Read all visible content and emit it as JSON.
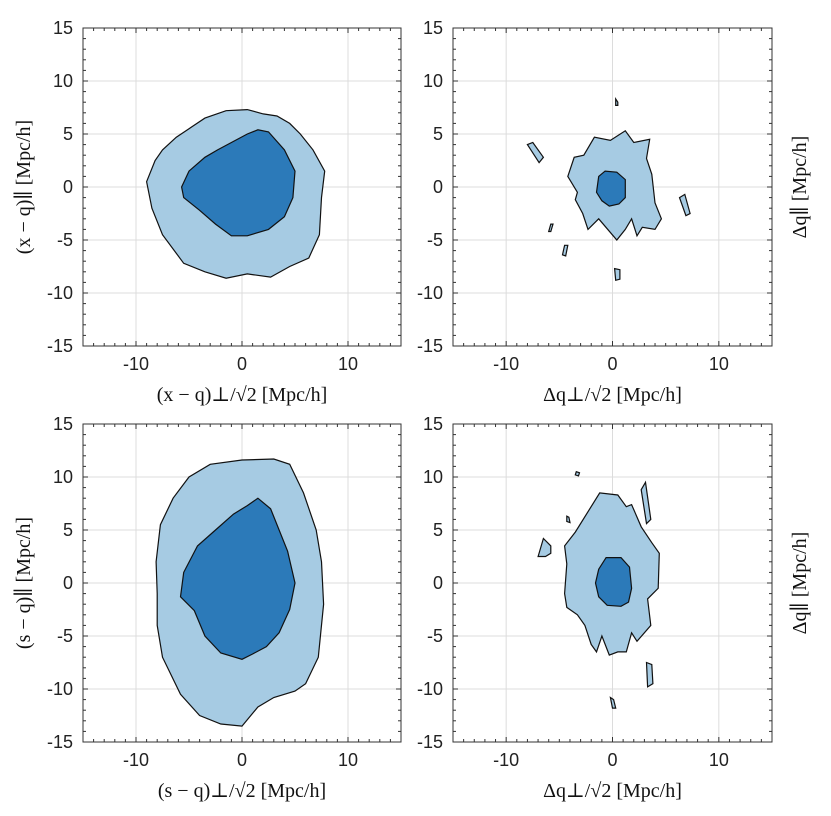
{
  "colors": {
    "outer_fill": "#a6cbe3",
    "inner_fill": "#2c7ab9",
    "outline": "#111111",
    "grid": "#dcdcdc"
  },
  "chart_data": [
    {
      "id": "top-left",
      "type": "contour",
      "xlabel": "(x − q)⊥/√2 [Mpc/h]",
      "ylabel": "(x − q)∥ [Mpc/h]",
      "ylabel_side": "left",
      "xlim": [
        -15,
        15
      ],
      "ylim": [
        -15,
        15
      ],
      "xticks": [
        -10,
        0,
        10
      ],
      "xtick_labels": [
        "-10",
        "0",
        "10"
      ],
      "yticks": [
        -15,
        -10,
        -5,
        0,
        5,
        10,
        15
      ],
      "ytick_labels": [
        "-15",
        "-10",
        "-5",
        "0",
        "5",
        "10",
        "15"
      ],
      "grid": true,
      "contours": [
        {
          "level": "outer",
          "polygons": [
            [
              [
                -9,
                0.5
              ],
              [
                -8.2,
                2.5
              ],
              [
                -7.5,
                3.5
              ],
              [
                -6.2,
                4.7
              ],
              [
                -5,
                5.5
              ],
              [
                -3.5,
                6.5
              ],
              [
                -1.5,
                7.2
              ],
              [
                0.5,
                7.3
              ],
              [
                2,
                6.9
              ],
              [
                3.3,
                6.7
              ],
              [
                4.5,
                6
              ],
              [
                5.5,
                5
              ],
              [
                6.7,
                3.5
              ],
              [
                7.8,
                1.5
              ],
              [
                7.5,
                -1
              ],
              [
                7.3,
                -4.5
              ],
              [
                6.3,
                -6.7
              ],
              [
                4.5,
                -7.5
              ],
              [
                2.7,
                -8.5
              ],
              [
                0.5,
                -8.2
              ],
              [
                -1.5,
                -8.6
              ],
              [
                -3.5,
                -8
              ],
              [
                -5.5,
                -7.2
              ],
              [
                -7.5,
                -4.5
              ],
              [
                -8.5,
                -2
              ]
            ]
          ]
        },
        {
          "level": "inner",
          "polygons": [
            [
              [
                -5.7,
                0
              ],
              [
                -5,
                1.5
              ],
              [
                -3.5,
                2.8
              ],
              [
                -2.3,
                3.5
              ],
              [
                -1,
                4.2
              ],
              [
                0.5,
                5
              ],
              [
                1.5,
                5.4
              ],
              [
                2.5,
                5.2
              ],
              [
                4,
                3.5
              ],
              [
                5,
                1.5
              ],
              [
                4.8,
                -1
              ],
              [
                4,
                -2.8
              ],
              [
                2.5,
                -4
              ],
              [
                0.5,
                -4.6
              ],
              [
                -1,
                -4.6
              ],
              [
                -2.5,
                -3.5
              ],
              [
                -4,
                -2.2
              ],
              [
                -5.5,
                -1
              ]
            ]
          ]
        }
      ]
    },
    {
      "id": "top-right",
      "type": "contour",
      "xlabel": "Δq⊥/√2 [Mpc/h]",
      "ylabel": "Δq∥ [Mpc/h]",
      "ylabel_side": "right",
      "xlim": [
        -15,
        15
      ],
      "ylim": [
        -15,
        15
      ],
      "xticks": [
        -10,
        0,
        10
      ],
      "xtick_labels": [
        "-10",
        "0",
        "10"
      ],
      "yticks": [
        -15,
        -10,
        -5,
        0,
        5,
        10,
        15
      ],
      "ytick_labels": [
        "-15",
        "-10",
        "-5",
        "0",
        "5",
        "10",
        "15"
      ],
      "grid": true,
      "contours": [
        {
          "level": "outer",
          "polygons": [
            [
              [
                -4.2,
                1
              ],
              [
                -3.6,
                2.8
              ],
              [
                -2.7,
                3
              ],
              [
                -1.7,
                4.7
              ],
              [
                -0.2,
                4.4
              ],
              [
                1.2,
                5.3
              ],
              [
                2,
                4.2
              ],
              [
                3.5,
                4.5
              ],
              [
                3.2,
                2.7
              ],
              [
                3.7,
                1.2
              ],
              [
                4,
                -1.5
              ],
              [
                4.6,
                -3
              ],
              [
                4,
                -4
              ],
              [
                2.8,
                -3.8
              ],
              [
                2.3,
                -4.6
              ],
              [
                1.8,
                -3
              ],
              [
                1.2,
                -4
              ],
              [
                0.4,
                -5
              ],
              [
                -1.3,
                -3
              ],
              [
                -2.3,
                -4
              ],
              [
                -2.8,
                -2.5
              ],
              [
                -3.5,
                -1.2
              ],
              [
                -3.3,
                -0.5
              ]
            ],
            [
              [
                -8,
                4
              ],
              [
                -7.5,
                4.2
              ],
              [
                -6.5,
                2.8
              ],
              [
                -6.9,
                2.3
              ]
            ],
            [
              [
                0.3,
                8.3
              ],
              [
                0.5,
                8
              ],
              [
                0.5,
                7.7
              ],
              [
                0.3,
                7.7
              ]
            ],
            [
              [
                6.3,
                -1
              ],
              [
                6.8,
                -0.7
              ],
              [
                7.3,
                -2.5
              ],
              [
                6.9,
                -2.7
              ]
            ],
            [
              [
                0.2,
                -7.7
              ],
              [
                0.7,
                -7.8
              ],
              [
                0.7,
                -8.7
              ],
              [
                0.3,
                -8.8
              ]
            ],
            [
              [
                -4.5,
                -5.5
              ],
              [
                -4.2,
                -5.5
              ],
              [
                -4.4,
                -6.5
              ],
              [
                -4.7,
                -6.4
              ]
            ],
            [
              [
                -5.8,
                -3.5
              ],
              [
                -5.6,
                -3.5
              ],
              [
                -5.8,
                -4.2
              ],
              [
                -6,
                -4.2
              ]
            ]
          ]
        },
        {
          "level": "inner",
          "polygons": [
            [
              [
                -1.5,
                -0.5
              ],
              [
                -1.3,
                1
              ],
              [
                -0.7,
                1.5
              ],
              [
                0.4,
                1.4
              ],
              [
                1.2,
                0.7
              ],
              [
                1.2,
                -1
              ],
              [
                0.6,
                -1.6
              ],
              [
                -0.3,
                -1.8
              ],
              [
                -1,
                -1.3
              ]
            ]
          ]
        }
      ]
    },
    {
      "id": "bottom-left",
      "type": "contour",
      "xlabel": "(s − q)⊥/√2 [Mpc/h]",
      "ylabel": "(s − q)∥ [Mpc/h]",
      "ylabel_side": "left",
      "xlim": [
        -15,
        15
      ],
      "ylim": [
        -15,
        15
      ],
      "xticks": [
        -10,
        0,
        10
      ],
      "xtick_labels": [
        "-10",
        "0",
        "10"
      ],
      "yticks": [
        -15,
        -10,
        -5,
        0,
        5,
        10,
        15
      ],
      "ytick_labels": [
        "-15",
        "-10",
        "-5",
        "0",
        "5",
        "10",
        "15"
      ],
      "grid": true,
      "contours": [
        {
          "level": "outer",
          "polygons": [
            [
              [
                -8,
                -1
              ],
              [
                -8.1,
                2
              ],
              [
                -7.7,
                5.5
              ],
              [
                -6.5,
                8
              ],
              [
                -5,
                10
              ],
              [
                -3,
                11.2
              ],
              [
                0,
                11.6
              ],
              [
                3,
                11.7
              ],
              [
                4.5,
                11.2
              ],
              [
                5.8,
                8.5
              ],
              [
                7,
                5
              ],
              [
                7.5,
                2
              ],
              [
                7.7,
                -2
              ],
              [
                7.2,
                -7
              ],
              [
                6,
                -9.5
              ],
              [
                5,
                -10.2
              ],
              [
                3,
                -10.8
              ],
              [
                1.5,
                -11.7
              ],
              [
                0,
                -13.5
              ],
              [
                -2,
                -13.3
              ],
              [
                -4,
                -12.5
              ],
              [
                -5.8,
                -10.5
              ],
              [
                -7.5,
                -7
              ],
              [
                -8,
                -4
              ]
            ]
          ]
        },
        {
          "level": "inner",
          "polygons": [
            [
              [
                -5.8,
                -1.3
              ],
              [
                -5.5,
                1
              ],
              [
                -4.2,
                3.5
              ],
              [
                -2.5,
                5
              ],
              [
                -0.8,
                6.5
              ],
              [
                0.5,
                7.3
              ],
              [
                1.5,
                8
              ],
              [
                2.7,
                7
              ],
              [
                4.3,
                3
              ],
              [
                5,
                0
              ],
              [
                4.5,
                -2.5
              ],
              [
                3.5,
                -4.7
              ],
              [
                2.3,
                -6
              ],
              [
                1,
                -6.7
              ],
              [
                0,
                -7.2
              ],
              [
                -2,
                -6.6
              ],
              [
                -3.5,
                -5
              ],
              [
                -4.5,
                -2.6
              ]
            ]
          ]
        }
      ]
    },
    {
      "id": "bottom-right",
      "type": "contour",
      "xlabel": "Δq⊥/√2 [Mpc/h]",
      "ylabel": "Δq∥ [Mpc/h]",
      "ylabel_side": "right",
      "xlim": [
        -15,
        15
      ],
      "ylim": [
        -15,
        15
      ],
      "xticks": [
        -10,
        0,
        10
      ],
      "xtick_labels": [
        "-10",
        "0",
        "10"
      ],
      "yticks": [
        -15,
        -10,
        -5,
        0,
        5,
        10,
        15
      ],
      "ytick_labels": [
        "-15",
        "-10",
        "-5",
        "0",
        "5",
        "10",
        "15"
      ],
      "grid": true,
      "contours": [
        {
          "level": "outer",
          "polygons": [
            [
              [
                -4.3,
                1.8
              ],
              [
                -4.5,
                3.5
              ],
              [
                -3.5,
                4.8
              ],
              [
                -1.2,
                8.5
              ],
              [
                0.5,
                8.3
              ],
              [
                1.3,
                7.2
              ],
              [
                1.8,
                7.4
              ],
              [
                2.7,
                5.3
              ],
              [
                3.7,
                3.8
              ],
              [
                4.4,
                2.8
              ],
              [
                4.3,
                -0.5
              ],
              [
                3.3,
                -1.5
              ],
              [
                3.6,
                -4
              ],
              [
                2.3,
                -5.5
              ],
              [
                1.8,
                -4.7
              ],
              [
                1.3,
                -6.5
              ],
              [
                0.5,
                -6.5
              ],
              [
                -0.3,
                -6.8
              ],
              [
                -1,
                -5
              ],
              [
                -1.5,
                -6.5
              ],
              [
                -2,
                -5.8
              ],
              [
                -2.6,
                -4
              ],
              [
                -3.3,
                -3
              ],
              [
                -4.3,
                -2.3
              ],
              [
                -4.5,
                -1
              ]
            ],
            [
              [
                -7,
                2.5
              ],
              [
                -6.5,
                4.2
              ],
              [
                -5.8,
                3.5
              ],
              [
                -5.8,
                2.8
              ],
              [
                -6.3,
                2.5
              ]
            ],
            [
              [
                2.7,
                8.8
              ],
              [
                3.1,
                9.5
              ],
              [
                3.6,
                6
              ],
              [
                3.2,
                5.6
              ]
            ],
            [
              [
                -4.3,
                6.3
              ],
              [
                -4.1,
                6.2
              ],
              [
                -4,
                5.7
              ],
              [
                -4.3,
                5.8
              ]
            ],
            [
              [
                3.2,
                -7.5
              ],
              [
                3.7,
                -7.7
              ],
              [
                3.8,
                -9.5
              ],
              [
                3.3,
                -9.8
              ]
            ],
            [
              [
                -0.2,
                -10.8
              ],
              [
                0.1,
                -11
              ],
              [
                0.3,
                -11.8
              ],
              [
                0,
                -11.8
              ]
            ],
            [
              [
                -3.4,
                10.5
              ],
              [
                -3.1,
                10.4
              ],
              [
                -3.2,
                10.1
              ],
              [
                -3.5,
                10.2
              ]
            ]
          ]
        },
        {
          "level": "inner",
          "polygons": [
            [
              [
                -1.6,
                0
              ],
              [
                -1.3,
                1.3
              ],
              [
                -0.6,
                2.4
              ],
              [
                0.8,
                2.4
              ],
              [
                1.6,
                1.5
              ],
              [
                1.8,
                -0.5
              ],
              [
                1.5,
                -1.8
              ],
              [
                0.8,
                -2.2
              ],
              [
                -0.5,
                -2.1
              ],
              [
                -1.3,
                -1.3
              ]
            ]
          ]
        }
      ]
    }
  ]
}
